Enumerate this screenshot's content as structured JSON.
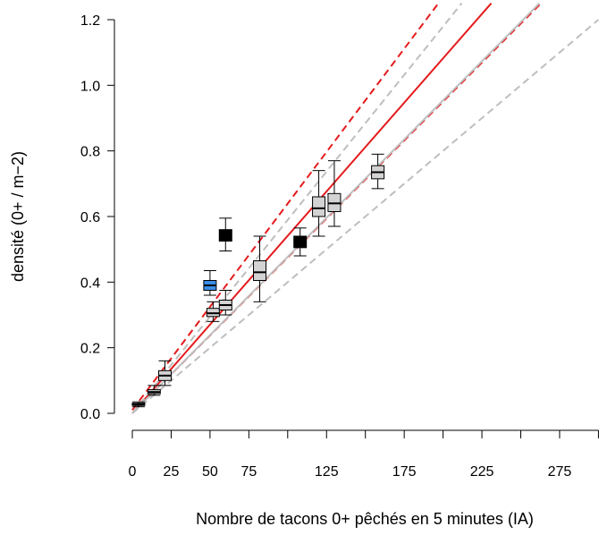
{
  "chart_data": {
    "type": "boxplot",
    "title": "",
    "xlabel": "Nombre de tacons 0+ pêchés en 5 minutes (IA)",
    "ylabel": "densité (0+ / m−2)",
    "xlim": [
      0,
      300
    ],
    "ylim": [
      0,
      1.2
    ],
    "x_tick_positions": [
      0,
      25,
      50,
      75,
      100,
      125,
      150,
      175,
      200,
      225,
      250,
      275,
      300
    ],
    "x_tick_labels": [
      "0",
      "25",
      "50",
      "75",
      "125",
      "175",
      "225",
      "275"
    ],
    "x_tick_label_positions": [
      0,
      25,
      50,
      75,
      125,
      175,
      225,
      275
    ],
    "y_ticks": [
      "0.0",
      "0.2",
      "0.4",
      "0.6",
      "0.8",
      "1.0",
      "1.2"
    ],
    "y_tick_values": [
      0,
      0.2,
      0.4,
      0.6,
      0.8,
      1.0,
      1.2
    ],
    "colors": {
      "red": "#e41a1c",
      "grey": "#bebebe",
      "box_grey": "#d3d3d3",
      "blue": "#3a8ee6",
      "black": "#000000"
    },
    "lines": [
      {
        "color": "red",
        "style": "solid",
        "x": [
          0,
          231
        ],
        "y": [
          0,
          1.25
        ]
      },
      {
        "color": "red",
        "style": "dashed",
        "x": [
          0,
          197
        ],
        "y": [
          0.01,
          1.25
        ]
      },
      {
        "color": "red",
        "style": "dashed",
        "x": [
          0,
          263
        ],
        "y": [
          0,
          1.25
        ]
      },
      {
        "color": "grey",
        "style": "solid",
        "x": [
          0,
          262
        ],
        "y": [
          0,
          1.25
        ]
      },
      {
        "color": "grey",
        "style": "dashed",
        "x": [
          0,
          212
        ],
        "y": [
          0,
          1.25
        ]
      },
      {
        "color": "grey",
        "style": "dashed",
        "x": [
          0,
          300
        ],
        "y": [
          0,
          1.2
        ]
      }
    ],
    "boxes": [
      {
        "x": 4,
        "whisker_low": 0.02,
        "q1": 0.024,
        "median": 0.027,
        "q3": 0.031,
        "whisker_high": 0.035,
        "fill": "box_grey"
      },
      {
        "x": 14,
        "whisker_low": 0.055,
        "q1": 0.06,
        "median": 0.065,
        "q3": 0.072,
        "whisker_high": 0.085,
        "fill": "box_grey"
      },
      {
        "x": 21,
        "whisker_low": 0.085,
        "q1": 0.1,
        "median": 0.115,
        "q3": 0.13,
        "whisker_high": 0.16,
        "fill": "box_grey"
      },
      {
        "x": 50,
        "whisker_low": 0.36,
        "q1": 0.375,
        "median": 0.39,
        "q3": 0.405,
        "whisker_high": 0.435,
        "fill": "blue"
      },
      {
        "x": 52,
        "whisker_low": 0.28,
        "q1": 0.295,
        "median": 0.305,
        "q3": 0.32,
        "whisker_high": 0.34,
        "fill": "box_grey"
      },
      {
        "x": 60,
        "whisker_low": 0.3,
        "q1": 0.315,
        "median": 0.33,
        "q3": 0.345,
        "whisker_high": 0.375,
        "fill": "box_grey"
      },
      {
        "x": 60,
        "whisker_low": 0.495,
        "q1": 0.525,
        "median": 0.54,
        "q3": 0.56,
        "whisker_high": 0.595,
        "fill": "black"
      },
      {
        "x": 82,
        "whisker_low": 0.34,
        "q1": 0.405,
        "median": 0.43,
        "q3": 0.465,
        "whisker_high": 0.54,
        "fill": "box_grey"
      },
      {
        "x": 108,
        "whisker_low": 0.48,
        "q1": 0.505,
        "median": 0.52,
        "q3": 0.54,
        "whisker_high": 0.565,
        "fill": "black"
      },
      {
        "x": 120,
        "whisker_low": 0.54,
        "q1": 0.6,
        "median": 0.625,
        "q3": 0.66,
        "whisker_high": 0.74,
        "fill": "box_grey"
      },
      {
        "x": 130,
        "whisker_low": 0.57,
        "q1": 0.615,
        "median": 0.64,
        "q3": 0.67,
        "whisker_high": 0.77,
        "fill": "box_grey"
      },
      {
        "x": 158,
        "whisker_low": 0.685,
        "q1": 0.715,
        "median": 0.735,
        "q3": 0.755,
        "whisker_high": 0.79,
        "fill": "box_grey"
      }
    ]
  }
}
